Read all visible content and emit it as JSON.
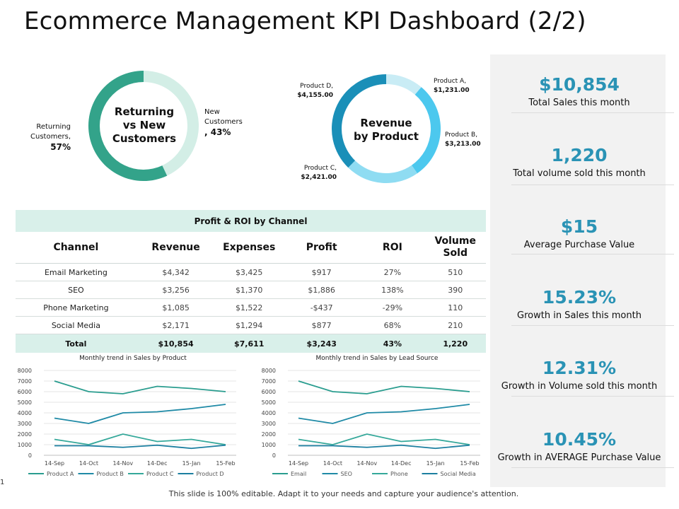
{
  "title": "Ecommerce Management KPI Dashboard (2/2)",
  "donut_customers": {
    "center": [
      "Returning",
      "vs New",
      "Customers"
    ],
    "returning_label": [
      "Returning",
      "Customers,"
    ],
    "returning_value": "57%",
    "new_label": [
      "New",
      "Customers"
    ],
    "new_value": ", 43%",
    "returning_pct": 57,
    "new_pct": 43,
    "colors": {
      "returning": "#33a38a",
      "new": "#d3eee6"
    }
  },
  "donut_products": {
    "center": [
      "Revenue",
      "by Product"
    ],
    "items": [
      {
        "name": "Product A,",
        "value": "$1,231.00",
        "amount": 1231,
        "color": "#c9ecf5"
      },
      {
        "name": "Product B,",
        "value": "$3,213.00",
        "amount": 3213,
        "color": "#4cc8ee"
      },
      {
        "name": "Product C,",
        "value": "$2,421.00",
        "amount": 2421,
        "color": "#8fdcf2"
      },
      {
        "name": "Product D,",
        "value": "$4,155.00",
        "amount": 4155,
        "color": "#1a8fb8"
      }
    ]
  },
  "table": {
    "caption": "Profit & ROI by Channel",
    "headers": [
      "Channel",
      "Revenue",
      "Expenses",
      "Profit",
      "ROI",
      "Volume Sold"
    ],
    "rows": [
      [
        "Email Marketing",
        "$4,342",
        "$3,425",
        "$917",
        "27%",
        "510"
      ],
      [
        "SEO",
        "$3,256",
        "$1,370",
        "$1,886",
        "138%",
        "390"
      ],
      [
        "Phone Marketing",
        "$1,085",
        "$1,522",
        "-$437",
        "-29%",
        "110"
      ],
      [
        "Social Media",
        "$2,171",
        "$1,294",
        "$877",
        "68%",
        "210"
      ]
    ],
    "total": [
      "Total",
      "$10,854",
      "$7,611",
      "$3,243",
      "43%",
      "1,220"
    ]
  },
  "kpis": [
    {
      "value": "$10,854",
      "label": "Total Sales this month"
    },
    {
      "value": "1,220",
      "label": "Total volume sold this month"
    },
    {
      "value": "$15",
      "label": "Average Purchase Value"
    },
    {
      "value": "15.23%",
      "label": "Growth in Sales this month"
    },
    {
      "value": "12.31%",
      "label": "Growth in Volume sold this month"
    },
    {
      "value": "10.45%",
      "label": "Growth in AVERAGE Purchase Value"
    }
  ],
  "chart_data": [
    {
      "type": "line",
      "title": "Monthly trend in Sales by Product",
      "x": [
        "14-Sep",
        "14-Oct",
        "14-Nov",
        "14-Dec",
        "15-Jan",
        "15-Feb"
      ],
      "yticks": [
        "0",
        "1000",
        "2000",
        "3000",
        "4000",
        "5000",
        "6000",
        "7000",
        "8000"
      ],
      "ylim": [
        0,
        8000
      ],
      "series": [
        {
          "name": "Product A",
          "values": [
            7000,
            6000,
            5800,
            6500,
            6300,
            6000
          ],
          "color": "#2a9d8f"
        },
        {
          "name": "Product B",
          "values": [
            3500,
            3000,
            4000,
            4100,
            4400,
            4800
          ],
          "color": "#1f8aa6"
        },
        {
          "name": "Product C",
          "values": [
            1500,
            1000,
            2000,
            1300,
            1500,
            1000
          ],
          "color": "#35a89a"
        },
        {
          "name": "Product D",
          "values": [
            900,
            900,
            750,
            950,
            650,
            950
          ],
          "color": "#1b7fa0"
        }
      ],
      "legend": "bottom"
    },
    {
      "type": "line",
      "title": "Monthly trend in Sales by Lead Source",
      "x": [
        "14-Sep",
        "14-Oct",
        "14-Nov",
        "14-Dec",
        "15-Jan",
        "15-Feb"
      ],
      "yticks": [
        "0",
        "1000",
        "2000",
        "3000",
        "4000",
        "5000",
        "6000",
        "7000",
        "8000"
      ],
      "ylim": [
        0,
        8000
      ],
      "series": [
        {
          "name": "Email",
          "values": [
            7000,
            6000,
            5800,
            6500,
            6300,
            6000
          ],
          "color": "#2a9d8f"
        },
        {
          "name": "SEO",
          "values": [
            3500,
            3000,
            4000,
            4100,
            4400,
            4800
          ],
          "color": "#1f8aa6"
        },
        {
          "name": "Phone",
          "values": [
            1500,
            1000,
            2000,
            1300,
            1500,
            1000
          ],
          "color": "#35a89a"
        },
        {
          "name": "Social Media",
          "values": [
            900,
            900,
            750,
            950,
            650,
            950
          ],
          "color": "#1b7fa0"
        }
      ],
      "legend": "bottom"
    }
  ],
  "footer": "This slide is 100% editable. Adapt it to your needs and capture your audience's attention.",
  "slide_number": "1"
}
